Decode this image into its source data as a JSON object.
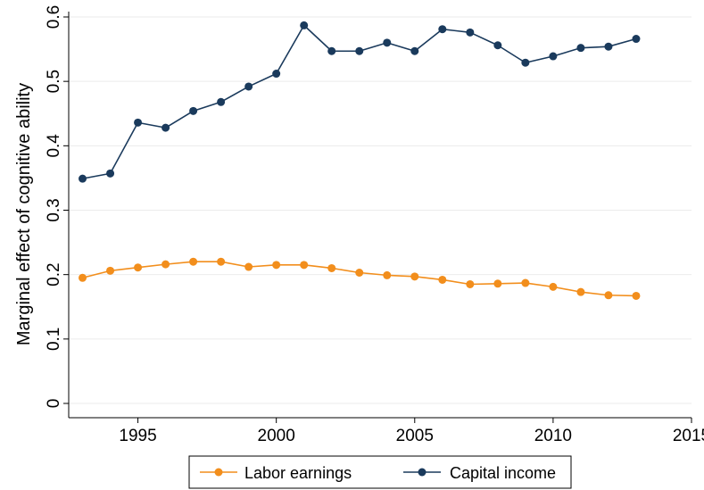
{
  "chart_data": {
    "type": "line",
    "title": "",
    "xlabel": "",
    "ylabel": "Marginal effect of cognitive ability",
    "xlim": [
      1992.5,
      2015
    ],
    "ylim": [
      0,
      0.6
    ],
    "x_ticks": [
      1995,
      2000,
      2005,
      2010,
      2015
    ],
    "y_ticks": [
      0,
      0.1,
      0.2,
      0.3,
      0.4,
      0.5,
      0.6
    ],
    "x_tick_labels": [
      "1995",
      "2000",
      "2005",
      "2010",
      "2015"
    ],
    "y_tick_labels": [
      "0",
      "0.1",
      "0.2",
      "0.3",
      "0.4",
      "0.5",
      "0.6"
    ],
    "grid": true,
    "legend_position": "bottom",
    "x": [
      1993,
      1994,
      1995,
      1996,
      1997,
      1998,
      1999,
      2000,
      2001,
      2002,
      2003,
      2004,
      2005,
      2006,
      2007,
      2008,
      2009,
      2010,
      2011,
      2012,
      2013
    ],
    "series": [
      {
        "name": "Labor earnings",
        "color": "#f28e1c",
        "values": [
          0.195,
          0.206,
          0.211,
          0.216,
          0.22,
          0.22,
          0.212,
          0.215,
          0.215,
          0.21,
          0.203,
          0.199,
          0.197,
          0.192,
          0.185,
          0.186,
          0.187,
          0.181,
          0.173,
          0.168,
          0.167
        ]
      },
      {
        "name": "Capital income",
        "color": "#1a3a5c",
        "values": [
          0.349,
          0.357,
          0.436,
          0.428,
          0.454,
          0.468,
          0.492,
          0.512,
          0.587,
          0.547,
          0.547,
          0.56,
          0.547,
          0.581,
          0.576,
          0.556,
          0.529,
          0.539,
          0.552,
          0.554,
          0.566
        ]
      }
    ]
  }
}
